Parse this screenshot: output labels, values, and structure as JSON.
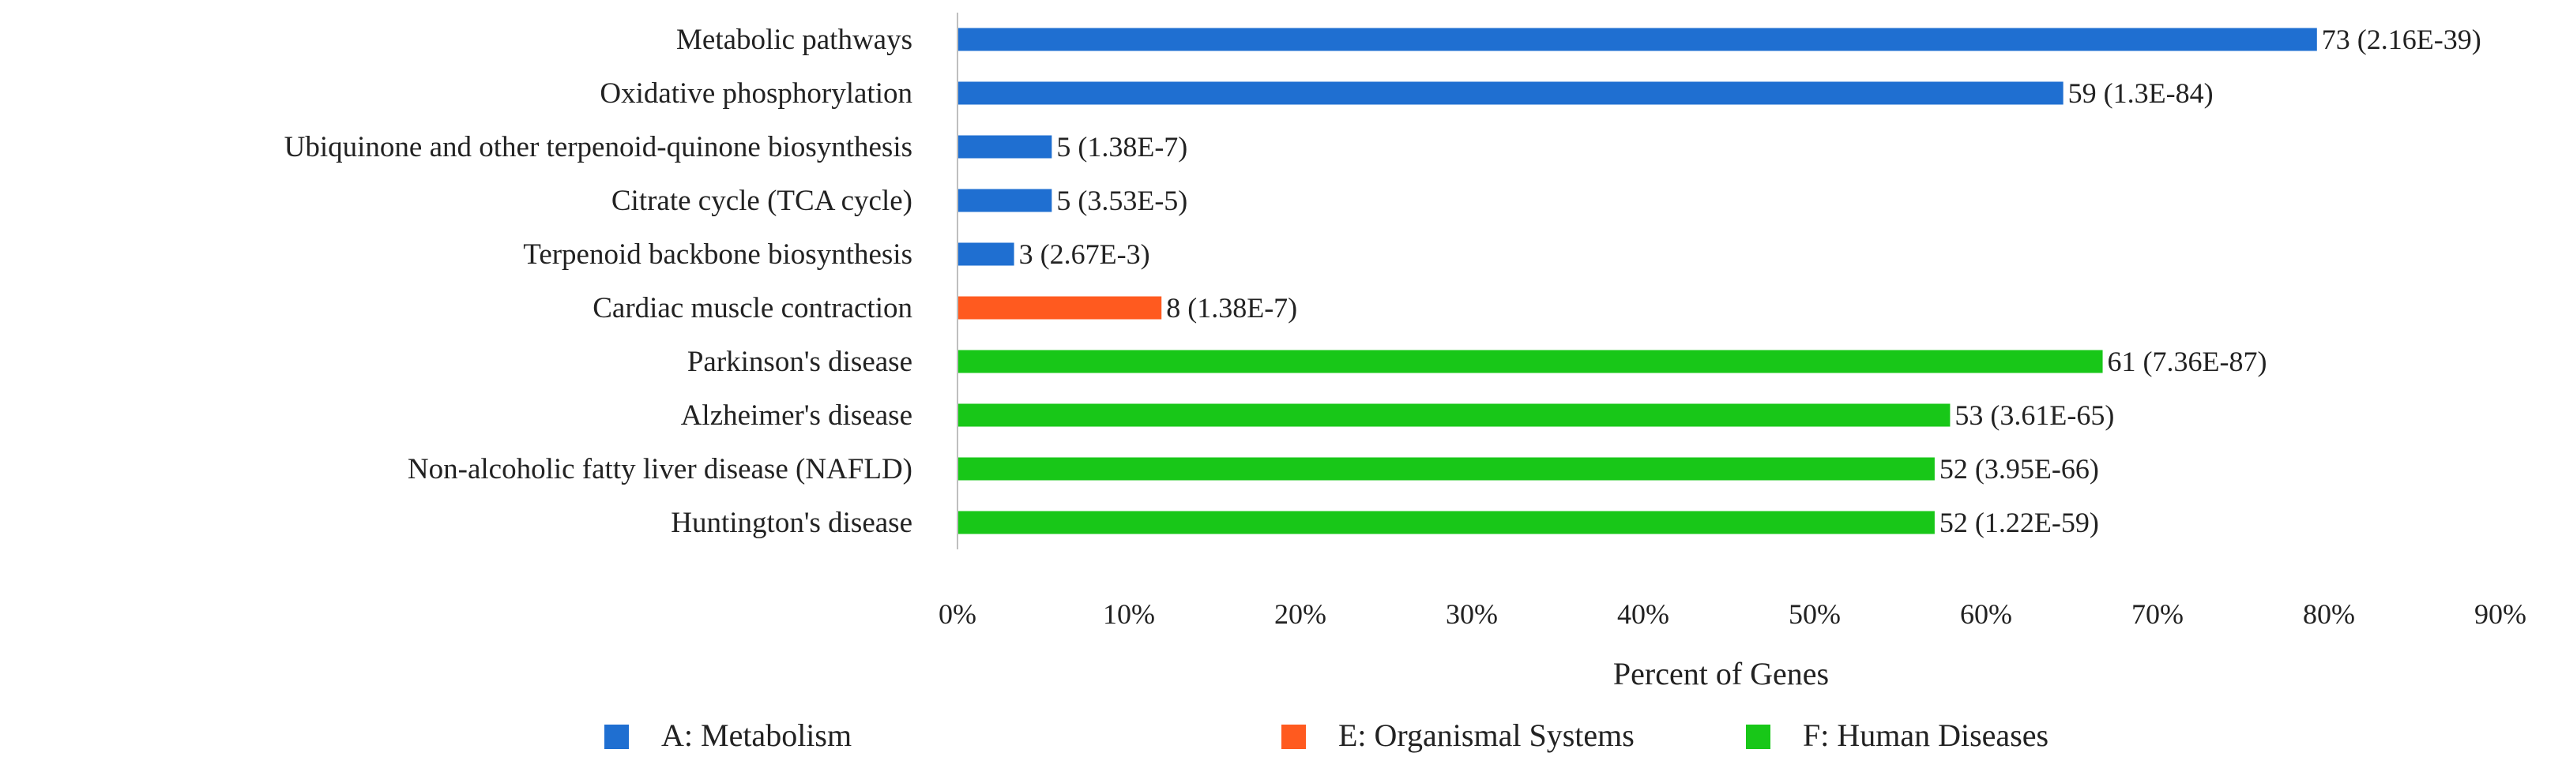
{
  "chart_data": {
    "type": "bar",
    "orientation": "horizontal",
    "title": "",
    "xlabel": "Percent of Genes",
    "ylabel": "",
    "xlim": [
      0,
      90
    ],
    "xticks": [
      "0%",
      "10%",
      "20%",
      "30%",
      "40%",
      "50%",
      "60%",
      "70%",
      "80%",
      "90%"
    ],
    "grid": false,
    "legend_position": "bottom",
    "groups": [
      {
        "name": "A: Metabolism",
        "color": "#1f6fd1"
      },
      {
        "name": "E: Organismal Systems",
        "color": "#ff5a1f"
      },
      {
        "name": "F: Human Diseases",
        "color": "#18c718"
      }
    ],
    "bars": [
      {
        "category": "Metabolic pathways",
        "percent": 79.3,
        "group": "A: Metabolism",
        "label": "73 (2.16E-39)"
      },
      {
        "category": "Oxidative phosphorylation",
        "percent": 64.5,
        "group": "A: Metabolism",
        "label": "59 (1.3E-84)"
      },
      {
        "category": "Ubiquinone and other terpenoid-quinone biosynthesis",
        "percent": 5.5,
        "group": "A: Metabolism",
        "label": "5 (1.38E-7)"
      },
      {
        "category": "Citrate cycle (TCA cycle)",
        "percent": 5.5,
        "group": "A: Metabolism",
        "label": "5 (3.53E-5)"
      },
      {
        "category": "Terpenoid backbone biosynthesis",
        "percent": 3.3,
        "group": "A: Metabolism",
        "label": "3 (2.67E-3)"
      },
      {
        "category": "Cardiac muscle contraction",
        "percent": 11.9,
        "group": "E: Organismal Systems",
        "label": "8 (1.38E-7)"
      },
      {
        "category": "Parkinson's disease",
        "percent": 66.8,
        "group": "F: Human Diseases",
        "label": "61 (7.36E-87)"
      },
      {
        "category": "Alzheimer's disease",
        "percent": 57.9,
        "group": "F: Human Diseases",
        "label": "53 (3.61E-65)"
      },
      {
        "category": "Non-alcoholic fatty liver disease (NAFLD)",
        "percent": 57.0,
        "group": "F: Human Diseases",
        "label": "52 (3.95E-66)"
      },
      {
        "category": "Huntington's disease",
        "percent": 57.0,
        "group": "F: Human Diseases",
        "label": "52 (1.22E-59)"
      }
    ]
  }
}
